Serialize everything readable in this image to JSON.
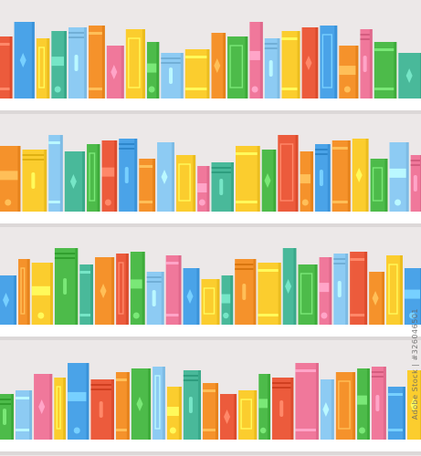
{
  "palette": {
    "wall": "#ece8e8",
    "shelf": "#ffffff",
    "shelf_shadow": "#dcd8d8",
    "orange": "#f5922b",
    "red": "#ec5b3c",
    "yellow": "#fbcd2e",
    "green": "#4dbb4a",
    "teal": "#49b99a",
    "blue": "#4aa3e8",
    "light_blue": "#8dcbf3",
    "pink": "#f0789b"
  },
  "shelves": [
    {
      "books": [
        "red",
        "blue",
        "yellow",
        "teal",
        "light_blue",
        "orange",
        "pink",
        "yellow",
        "green",
        "light_blue",
        "yellow",
        "orange",
        "green",
        "pink",
        "light_blue",
        "yellow",
        "red",
        "blue",
        "orange",
        "pink",
        "green",
        "teal"
      ]
    },
    {
      "books": [
        "orange",
        "yellow",
        "light_blue",
        "teal",
        "green",
        "red",
        "blue",
        "orange",
        "light_blue",
        "yellow",
        "pink",
        "teal",
        "yellow",
        "green",
        "red",
        "orange",
        "blue",
        "orange",
        "yellow",
        "green",
        "light_blue",
        "pink"
      ]
    },
    {
      "books": [
        "blue",
        "orange",
        "yellow",
        "green",
        "teal",
        "orange",
        "red",
        "green",
        "light_blue",
        "pink",
        "blue",
        "yellow",
        "teal",
        "orange",
        "yellow",
        "teal",
        "green",
        "pink",
        "light_blue",
        "red",
        "orange",
        "yellow",
        "blue"
      ]
    },
    {
      "books": [
        "green",
        "light_blue",
        "pink",
        "yellow",
        "blue",
        "red",
        "orange",
        "green",
        "light_blue",
        "yellow",
        "teal",
        "orange",
        "red",
        "yellow",
        "green",
        "red",
        "pink",
        "light_blue",
        "orange",
        "green",
        "pink",
        "blue",
        "yellow"
      ]
    }
  ],
  "watermark": "Adobe Stock | #326046501"
}
